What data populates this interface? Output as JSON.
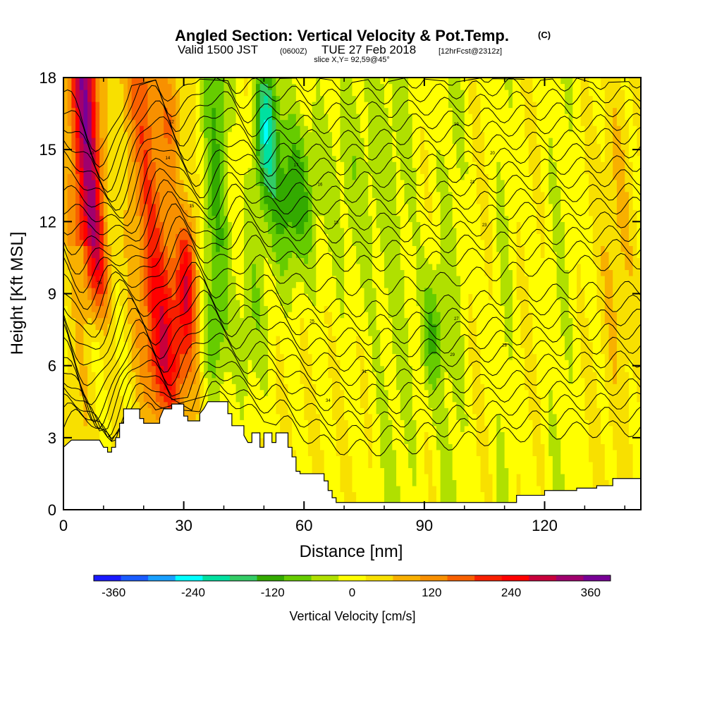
{
  "chart_data": {
    "type": "heatmap",
    "title": "Angled Section: Vertical Velocity & Pot.Temp.",
    "title_suffix": "(C)",
    "subtitle": {
      "valid": "Valid 1500 JST",
      "utc": "(0600Z)",
      "date": "TUE 27 Feb 2018",
      "forecast": "[12hrFcst@2312z]"
    },
    "slice_note": "slice X,Y= 92,59@45°",
    "xlabel": "Distance [nm]",
    "ylabel": "Height [Kft MSL]",
    "xlim": [
      0,
      144
    ],
    "ylim": [
      0,
      18
    ],
    "x_ticks": [
      "0",
      "30",
      "60",
      "90",
      "120"
    ],
    "x_tick_values": [
      0,
      30,
      60,
      90,
      120
    ],
    "y_ticks": [
      "0",
      "3",
      "6",
      "9",
      "12",
      "15",
      "18"
    ],
    "y_tick_values": [
      0,
      3,
      6,
      9,
      12,
      15,
      18
    ],
    "colorbar": {
      "label": "Vertical Velocity [cm/s]",
      "ticks": [
        "-360",
        "-240",
        "-120",
        "0",
        "120",
        "240",
        "360"
      ],
      "tick_values": [
        -360,
        -240,
        -120,
        0,
        120,
        240,
        360
      ],
      "range": [
        -390,
        390
      ],
      "colors": [
        "#1a1aff",
        "#1a5cff",
        "#19a0ff",
        "#00ffff",
        "#00e0a0",
        "#33cc66",
        "#33aa00",
        "#66cc00",
        "#b0e000",
        "#ffff00",
        "#f8e000",
        "#f8b000",
        "#f89000",
        "#f86000",
        "#f82000",
        "#ff0000",
        "#c8003c",
        "#a0006e",
        "#780096"
      ]
    },
    "terrain_kft": [
      [
        0,
        2.6
      ],
      [
        2,
        2.9
      ],
      [
        9,
        2.9
      ],
      [
        10,
        2.6
      ],
      [
        11,
        2.6
      ],
      [
        11,
        2.4
      ],
      [
        12,
        2.4
      ],
      [
        12,
        2.6
      ],
      [
        13,
        2.6
      ],
      [
        13,
        3.0
      ],
      [
        14,
        3.0
      ],
      [
        14,
        3.6
      ],
      [
        15,
        3.6
      ],
      [
        15,
        4.2
      ],
      [
        19,
        4.2
      ],
      [
        19,
        3.8
      ],
      [
        20,
        3.8
      ],
      [
        20,
        3.6
      ],
      [
        24,
        3.6
      ],
      [
        24,
        3.8
      ],
      [
        25,
        4.2
      ],
      [
        27,
        4.2
      ],
      [
        27,
        4.4
      ],
      [
        30,
        4.4
      ],
      [
        30,
        3.9
      ],
      [
        31,
        3.9
      ],
      [
        31,
        3.7
      ],
      [
        34,
        3.7
      ],
      [
        34,
        4.0
      ],
      [
        35,
        4.2
      ],
      [
        36,
        4.5
      ],
      [
        41,
        4.5
      ],
      [
        41,
        4.0
      ],
      [
        42,
        4.0
      ],
      [
        42,
        3.5
      ],
      [
        45,
        3.5
      ],
      [
        45,
        3.1
      ],
      [
        46,
        2.8
      ],
      [
        47,
        2.8
      ],
      [
        47,
        3.2
      ],
      [
        49,
        3.2
      ],
      [
        49,
        2.6
      ],
      [
        50,
        2.6
      ],
      [
        50,
        3.2
      ],
      [
        52,
        3.2
      ],
      [
        52,
        2.8
      ],
      [
        53,
        2.8
      ],
      [
        53,
        3.2
      ],
      [
        56,
        3.2
      ],
      [
        56,
        2.6
      ],
      [
        57,
        2.6
      ],
      [
        57,
        2.2
      ],
      [
        58,
        2.2
      ],
      [
        58,
        1.6
      ],
      [
        59,
        1.6
      ],
      [
        59,
        1.5
      ],
      [
        65,
        1.5
      ],
      [
        65,
        1.2
      ],
      [
        66,
        1.2
      ],
      [
        66,
        0.8
      ],
      [
        67,
        0.8
      ],
      [
        67,
        0.5
      ],
      [
        68,
        0.5
      ],
      [
        68,
        0.3
      ],
      [
        113,
        0.3
      ],
      [
        113,
        0.6
      ],
      [
        120,
        0.6
      ],
      [
        120,
        0.8
      ],
      [
        128,
        0.8
      ],
      [
        128,
        0.9
      ],
      [
        133,
        0.9
      ],
      [
        133,
        1.0
      ],
      [
        137,
        1.0
      ],
      [
        137,
        1.3
      ],
      [
        144,
        1.3
      ]
    ],
    "contour_labels": [
      "10",
      "12",
      "14",
      "15",
      "16",
      "17",
      "18",
      "19",
      "20",
      "21",
      "23",
      "25",
      "27",
      "28",
      "29",
      "31",
      "34",
      "35"
    ],
    "grid": false,
    "legend": "colorbar-bottom"
  }
}
